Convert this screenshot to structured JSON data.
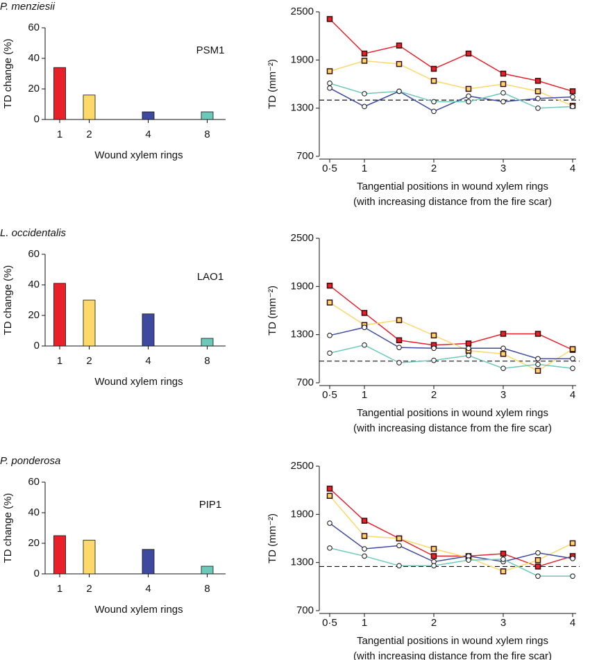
{
  "chart_data": [
    {
      "type": "bar",
      "title": "P. menziesii",
      "label": "PSM1",
      "ylabel": "TD change (%)",
      "xlabel": "Wound xylem rings",
      "categories": [
        "1",
        "2",
        "4",
        "8"
      ],
      "values": [
        34,
        16,
        5,
        5
      ],
      "colors": [
        "#e8202a",
        "#fdd86a",
        "#3e4aa0",
        "#6cc8b8"
      ],
      "ylim": [
        0,
        60
      ],
      "yticks": [
        0,
        20,
        40,
        60
      ]
    },
    {
      "type": "line",
      "ylabel": "TD (mm⁻²)",
      "xlabel": [
        "Tangential positions in wound xylem rings",
        "(with increasing distance from the fire scar)"
      ],
      "x": [
        0.5,
        1,
        1.5,
        2,
        2.5,
        3,
        3.5,
        4
      ],
      "xlim": [
        0.35,
        4.05
      ],
      "xticks": [
        {
          "value": 0.5,
          "label": "0·5"
        },
        1,
        2,
        3,
        4
      ],
      "ylim": [
        700,
        2500
      ],
      "yticks": [
        700,
        1300,
        1900,
        2500
      ],
      "reference": 1400,
      "series": [
        {
          "color": "#e8202a",
          "marker": "square",
          "values": [
            2410,
            1980,
            2080,
            1790,
            1980,
            1730,
            1640,
            1510
          ]
        },
        {
          "color": "#fdd86a",
          "marker": "square",
          "values": [
            1760,
            1890,
            1850,
            1640,
            1540,
            1600,
            1510,
            1330
          ]
        },
        {
          "color": "#3e4aa0",
          "marker": "circle",
          "values": [
            1550,
            1320,
            1510,
            1260,
            1450,
            1380,
            1420,
            1440
          ]
        },
        {
          "color": "#6cc8b8",
          "marker": "circle",
          "values": [
            1610,
            1480,
            1510,
            1380,
            1380,
            1490,
            1300,
            1320
          ]
        }
      ]
    },
    {
      "type": "bar",
      "title": "L. occidentalis",
      "label": "LAO1",
      "ylabel": "TD change (%)",
      "xlabel": "Wound xylem rings",
      "categories": [
        "1",
        "2",
        "4",
        "8"
      ],
      "values": [
        41,
        30,
        21,
        5
      ],
      "colors": [
        "#e8202a",
        "#fdd86a",
        "#3e4aa0",
        "#6cc8b8"
      ],
      "ylim": [
        0,
        60
      ],
      "yticks": [
        0,
        20,
        40,
        60
      ]
    },
    {
      "type": "line",
      "ylabel": "TD (mm⁻²)",
      "xlabel": [
        "Tangential positions in wound xylem rings",
        "(with increasing distance from the fire scar)"
      ],
      "x": [
        0.5,
        1,
        1.5,
        2,
        2.5,
        3,
        3.5,
        4
      ],
      "xlim": [
        0.35,
        4.05
      ],
      "xticks": [
        {
          "value": 0.5,
          "label": "0·5"
        },
        1,
        2,
        3,
        4
      ],
      "ylim": [
        700,
        2500
      ],
      "yticks": [
        700,
        1300,
        1900,
        2500
      ],
      "reference": 970,
      "series": [
        {
          "color": "#e8202a",
          "marker": "square",
          "values": [
            1910,
            1570,
            1230,
            1170,
            1190,
            1310,
            1310,
            1110
          ]
        },
        {
          "color": "#fdd86a",
          "marker": "square",
          "values": [
            1700,
            1420,
            1480,
            1290,
            1100,
            1060,
            850,
            1120
          ]
        },
        {
          "color": "#3e4aa0",
          "marker": "circle",
          "values": [
            1290,
            1390,
            1140,
            1130,
            1130,
            1130,
            1000,
            1000
          ]
        },
        {
          "color": "#6cc8b8",
          "marker": "circle",
          "values": [
            1070,
            1170,
            950,
            980,
            1040,
            880,
            930,
            880
          ]
        }
      ]
    },
    {
      "type": "bar",
      "title": "P. ponderosa",
      "label": "PIP1",
      "ylabel": "TD change (%)",
      "xlabel": "Wound xylem rings",
      "categories": [
        "1",
        "2",
        "4",
        "8"
      ],
      "values": [
        25,
        22,
        16,
        5
      ],
      "colors": [
        "#e8202a",
        "#fdd86a",
        "#3e4aa0",
        "#6cc8b8"
      ],
      "ylim": [
        0,
        60
      ],
      "yticks": [
        0,
        20,
        40,
        60
      ]
    },
    {
      "type": "line",
      "ylabel": "TD (mm⁻²)",
      "xlabel": [
        "Tangential positions in wound xylem rings",
        "(with increasing distance from the fire scar)"
      ],
      "x": [
        0.5,
        1,
        1.5,
        2,
        2.5,
        3,
        3.5,
        4
      ],
      "xlim": [
        0.35,
        4.05
      ],
      "xticks": [
        {
          "value": 0.5,
          "label": "0·5"
        },
        1,
        2,
        3,
        4
      ],
      "ylim": [
        700,
        2500
      ],
      "yticks": [
        700,
        1300,
        1900,
        2500
      ],
      "reference": 1250,
      "series": [
        {
          "color": "#e8202a",
          "marker": "square",
          "values": [
            2220,
            1820,
            1600,
            1380,
            1380,
            1410,
            1250,
            1380
          ]
        },
        {
          "color": "#fdd86a",
          "marker": "square",
          "values": [
            2130,
            1630,
            1600,
            1470,
            1360,
            1190,
            1330,
            1540
          ]
        },
        {
          "color": "#3e4aa0",
          "marker": "circle",
          "values": [
            1790,
            1470,
            1510,
            1310,
            1380,
            1310,
            1420,
            1350
          ]
        },
        {
          "color": "#6cc8b8",
          "marker": "circle",
          "values": [
            1480,
            1380,
            1260,
            1260,
            1330,
            1340,
            1130,
            1130
          ]
        }
      ]
    }
  ]
}
